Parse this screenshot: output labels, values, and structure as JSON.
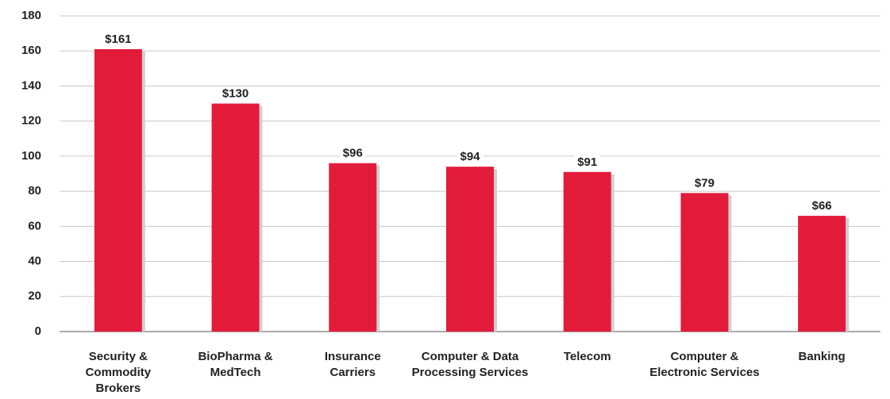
{
  "chart_data": {
    "type": "bar",
    "categories": [
      "Security & Commodity Brokers",
      "BioPharma & MedTech",
      "Insurance Carriers",
      "Computer & Data Processing Services",
      "Telecom",
      "Computer & Electronic Services",
      "Banking"
    ],
    "values": [
      161,
      130,
      96,
      94,
      91,
      79,
      66
    ],
    "value_labels": [
      "$161",
      "$130",
      "$96",
      "$94",
      "$91",
      "$79",
      "$66"
    ],
    "color": "#e31b3b",
    "ylim": [
      0,
      180
    ],
    "yticks": [
      0,
      20,
      40,
      60,
      80,
      100,
      120,
      140,
      160,
      180
    ],
    "grid": true
  }
}
